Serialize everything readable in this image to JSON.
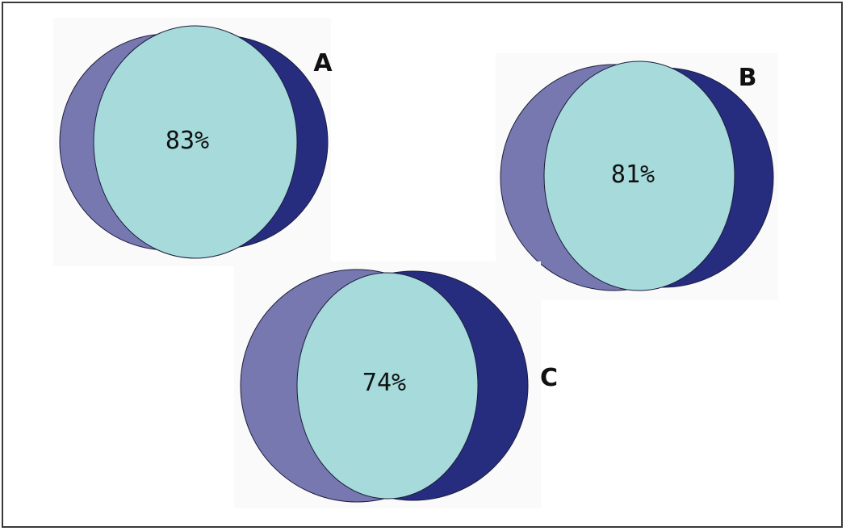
{
  "colors": {
    "left_circle": "#7778b0",
    "right_circle": "#262d7e",
    "overlap": "#a6dadb",
    "panel": "#fafafa",
    "outline": "#1c1c3c"
  },
  "diagrams": [
    {
      "label": "A",
      "overlap_text": "83%"
    },
    {
      "label": "B",
      "overlap_text": "81%"
    },
    {
      "label": "C",
      "overlap_text": "74%"
    }
  ]
}
